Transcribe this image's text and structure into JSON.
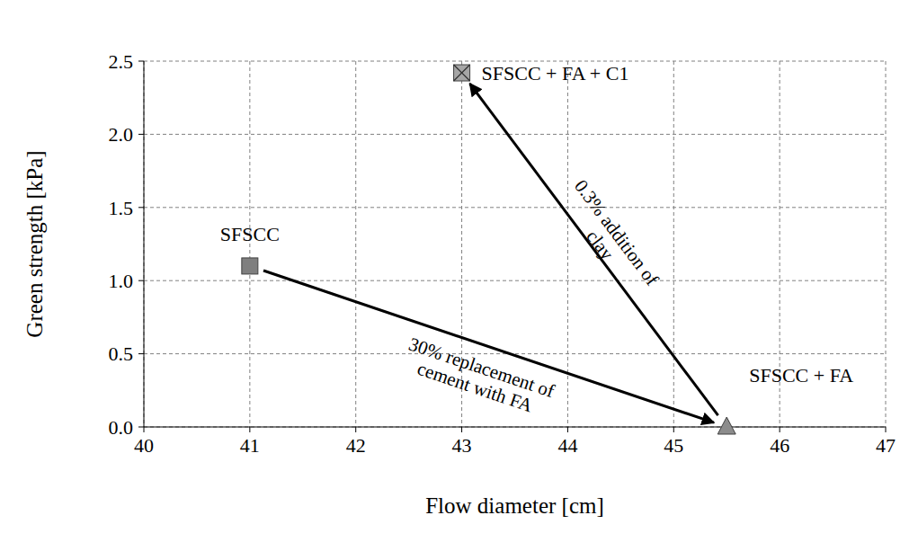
{
  "chart_data": {
    "type": "scatter",
    "x_label": "Flow diameter [cm]",
    "y_label": "Green strength [kPa]",
    "xlim": [
      40,
      47
    ],
    "xticks": [
      40,
      41,
      42,
      43,
      44,
      45,
      46,
      47
    ],
    "ylim": [
      0,
      2.5
    ],
    "yticks": [
      {
        "value": 0,
        "label": "0.0"
      },
      0.5,
      {
        "value": 1,
        "label": "1.0"
      },
      1.5,
      {
        "value": 2,
        "label": "2.0"
      },
      2.5
    ],
    "grid": true,
    "series": [
      {
        "name": "SFSCC",
        "color": "#7f7f7f",
        "marker": "square",
        "x": [
          41
        ],
        "values": [
          1.1
        ]
      },
      {
        "name": "SFSCC + FA",
        "color": "#8c8c8c",
        "marker": "triangle",
        "x": [
          45.5
        ],
        "values": [
          0
        ]
      },
      {
        "name": "SFSCC + FA + C1",
        "color": "#a6a6a6",
        "marker": "square_x",
        "x": [
          43
        ],
        "values": [
          2.42
        ]
      }
    ],
    "annotations": [
      {
        "text": "30% replacement of cement with FA",
        "from": "SFSCC",
        "to": "SFSCC + FA"
      },
      {
        "text": "0.3% addition of clay",
        "from": "SFSCC + FA",
        "to": "SFSCC + FA + C1"
      }
    ]
  }
}
